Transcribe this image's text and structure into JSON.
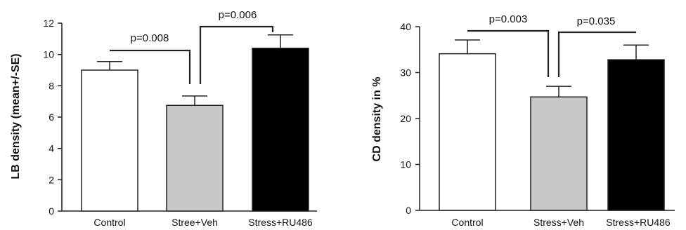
{
  "chart_data": [
    {
      "type": "bar",
      "ylabel": "LB density (mean+/-SE)",
      "categories": [
        "Control",
        "Stree+Veh",
        "Stress+RU486"
      ],
      "values": [
        9.0,
        6.75,
        10.4
      ],
      "errors": [
        0.55,
        0.6,
        0.85
      ],
      "ylim": [
        0,
        12
      ],
      "yticks": [
        "0",
        "2",
        "4",
        "6",
        "8",
        "10",
        "12"
      ],
      "bar_colors": [
        "#ffffff",
        "#c8c8c8",
        "#000000"
      ],
      "comparisons": [
        {
          "from": 0,
          "to": 1,
          "label": "p=0.008"
        },
        {
          "from": 1,
          "to": 2,
          "label": "p=0.006"
        }
      ]
    },
    {
      "type": "bar",
      "ylabel": "CD density in %",
      "categories": [
        "Control",
        "Stress+Veh",
        "Stress+RU486"
      ],
      "values": [
        34.1,
        24.7,
        32.8
      ],
      "errors": [
        3.0,
        2.3,
        3.2
      ],
      "ylim": [
        0,
        40
      ],
      "yticks": [
        "0",
        "10",
        "20",
        "30",
        "40"
      ],
      "bar_colors": [
        "#ffffff",
        "#c8c8c8",
        "#000000"
      ],
      "comparisons": [
        {
          "from": 0,
          "to": 1,
          "label": "p=0.003"
        },
        {
          "from": 1,
          "to": 2,
          "label": "p=0.035"
        }
      ]
    }
  ]
}
